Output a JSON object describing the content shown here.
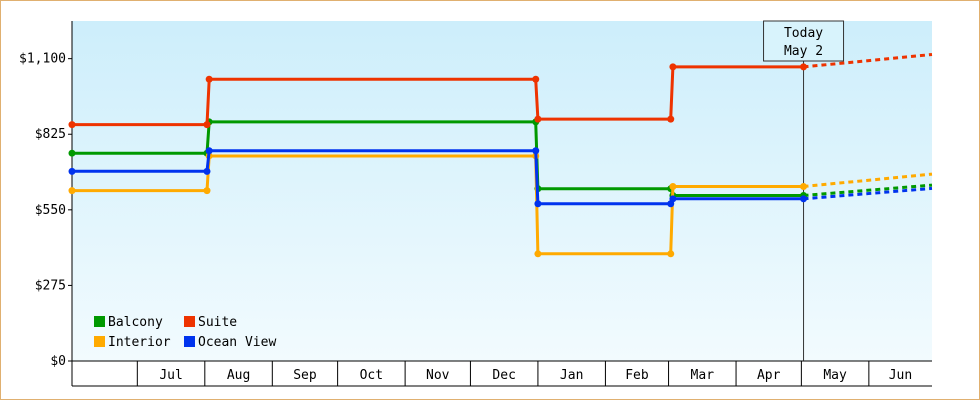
{
  "chart_data": {
    "type": "line",
    "title": "",
    "xlabel": "",
    "ylabel": "",
    "ylim": [
      0,
      1237
    ],
    "y_ticks": [
      {
        "value": 0,
        "label": "$0"
      },
      {
        "value": 275,
        "label": "$275"
      },
      {
        "value": 550,
        "label": "$550"
      },
      {
        "value": 825,
        "label": "$825"
      },
      {
        "value": 1100,
        "label": "$1,100"
      }
    ],
    "x_range": [
      "2023-06-01",
      "2024-06-30"
    ],
    "months": [
      {
        "label": "Jul",
        "start": "2023-07-01",
        "end": "2023-07-31"
      },
      {
        "label": "Aug",
        "start": "2023-08-01",
        "end": "2023-08-31"
      },
      {
        "label": "Sep",
        "start": "2023-09-01",
        "end": "2023-09-30"
      },
      {
        "label": "Oct",
        "start": "2023-10-01",
        "end": "2023-10-31"
      },
      {
        "label": "Nov",
        "start": "2023-11-01",
        "end": "2023-11-30"
      },
      {
        "label": "Dec",
        "start": "2023-12-01",
        "end": "2023-12-31"
      },
      {
        "label": "Jan",
        "start": "2024-01-01",
        "end": "2024-01-31"
      },
      {
        "label": "Feb",
        "start": "2024-02-01",
        "end": "2024-02-29"
      },
      {
        "label": "Mar",
        "start": "2024-03-01",
        "end": "2024-03-31"
      },
      {
        "label": "Apr",
        "start": "2024-04-01",
        "end": "2024-04-30"
      },
      {
        "label": "May",
        "start": "2024-05-01",
        "end": "2024-05-31"
      },
      {
        "label": "Jun",
        "start": "2024-06-01",
        "end": "2024-06-30"
      }
    ],
    "today": {
      "date": "2024-05-02",
      "label_line1": "Today",
      "label_line2": "May 2"
    },
    "legend_placement": "bottom-left",
    "series": [
      {
        "name": "Balcony",
        "color": "#009900",
        "points": [
          [
            "2023-06-01",
            756
          ],
          [
            "2023-08-02",
            756
          ],
          [
            "2023-08-03",
            870
          ],
          [
            "2023-12-31",
            870
          ],
          [
            "2024-01-01",
            627
          ],
          [
            "2024-03-02",
            627
          ],
          [
            "2024-03-03",
            602
          ],
          [
            "2024-05-02",
            602
          ]
        ],
        "forecast": [
          [
            "2024-05-02",
            602
          ],
          [
            "2024-06-30",
            640
          ]
        ]
      },
      {
        "name": "Suite",
        "color": "#ee3300",
        "points": [
          [
            "2023-06-01",
            860
          ],
          [
            "2023-08-02",
            860
          ],
          [
            "2023-08-03",
            1025
          ],
          [
            "2023-12-31",
            1025
          ],
          [
            "2024-01-01",
            880
          ],
          [
            "2024-03-02",
            880
          ],
          [
            "2024-03-03",
            1070
          ],
          [
            "2024-05-02",
            1070
          ]
        ],
        "forecast": [
          [
            "2024-05-02",
            1070
          ],
          [
            "2024-06-30",
            1115
          ]
        ]
      },
      {
        "name": "Interior",
        "color": "#ffaa00",
        "points": [
          [
            "2023-06-01",
            620
          ],
          [
            "2023-08-02",
            620
          ],
          [
            "2023-08-03",
            746
          ],
          [
            "2023-12-31",
            746
          ],
          [
            "2024-01-01",
            390
          ],
          [
            "2024-03-02",
            390
          ],
          [
            "2024-03-03",
            635
          ],
          [
            "2024-05-02",
            635
          ]
        ],
        "forecast": [
          [
            "2024-05-02",
            635
          ],
          [
            "2024-06-30",
            680
          ]
        ]
      },
      {
        "name": "Ocean View",
        "color": "#0033ee",
        "points": [
          [
            "2023-06-01",
            690
          ],
          [
            "2023-08-02",
            690
          ],
          [
            "2023-08-03",
            765
          ],
          [
            "2023-12-31",
            765
          ],
          [
            "2024-01-01",
            572
          ],
          [
            "2024-03-02",
            572
          ],
          [
            "2024-03-03",
            590
          ],
          [
            "2024-05-02",
            590
          ]
        ],
        "forecast": [
          [
            "2024-05-02",
            590
          ],
          [
            "2024-06-30",
            628
          ]
        ]
      }
    ]
  }
}
